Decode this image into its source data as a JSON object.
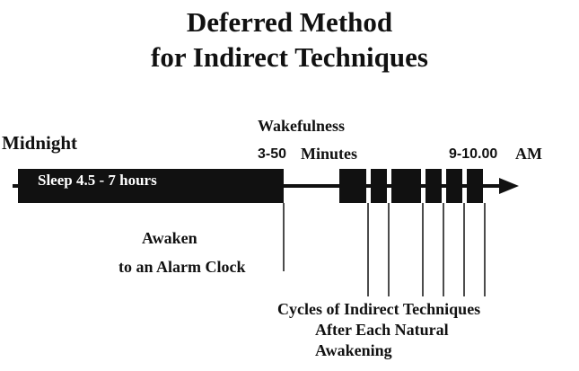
{
  "title": {
    "line1": "Deferred Method",
    "line2": "for Indirect Techniques"
  },
  "labels": {
    "midnight": "Midnight",
    "wakefulness": "Wakefulness",
    "wakefulness_duration_num": "3-50",
    "wakefulness_duration_unit": "Minutes",
    "end_time_num": "9-10.00",
    "end_time_unit": "AM",
    "sleep_bar": "Sleep 4.5 - 7 hours",
    "awaken_line1": "Awaken",
    "awaken_line2": "to an Alarm Clock",
    "cycles_line1": "Cycles of Indirect Techniques",
    "cycles_line2": "After Each Natural",
    "cycles_line3": "Awakening"
  },
  "colors": {
    "ink": "#111111",
    "bar_text": "#ffffff",
    "background": "#ffffff"
  }
}
